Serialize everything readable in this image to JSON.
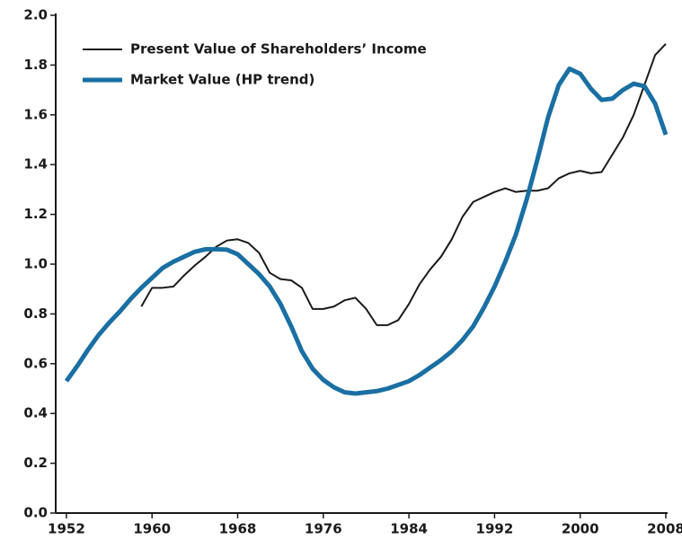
{
  "chart_data": {
    "type": "line",
    "x": [
      1952,
      1953,
      1954,
      1955,
      1956,
      1957,
      1958,
      1959,
      1960,
      1961,
      1962,
      1963,
      1964,
      1965,
      1966,
      1967,
      1968,
      1969,
      1970,
      1971,
      1972,
      1973,
      1974,
      1975,
      1976,
      1977,
      1978,
      1979,
      1980,
      1981,
      1982,
      1983,
      1984,
      1985,
      1986,
      1987,
      1988,
      1989,
      1990,
      1991,
      1992,
      1993,
      1994,
      1995,
      1996,
      1997,
      1998,
      1999,
      2000,
      2001,
      2002,
      2003,
      2004,
      2005,
      2006,
      2007,
      2008
    ],
    "series": [
      {
        "name": "Present Value of Shareholders’ Income",
        "color": "#1a1a1a",
        "values": [
          null,
          null,
          null,
          null,
          null,
          null,
          null,
          0.83,
          0.905,
          0.905,
          0.91,
          0.955,
          0.995,
          1.03,
          1.07,
          1.095,
          1.1,
          1.085,
          1.045,
          0.965,
          0.94,
          0.935,
          0.905,
          0.82,
          0.82,
          0.83,
          0.855,
          0.865,
          0.82,
          0.755,
          0.755,
          0.775,
          0.84,
          0.92,
          0.98,
          1.03,
          1.1,
          1.19,
          1.25,
          1.27,
          1.29,
          1.305,
          1.29,
          1.295,
          1.295,
          1.305,
          1.345,
          1.365,
          1.375,
          1.365,
          1.37,
          1.44,
          1.51,
          1.6,
          1.72,
          1.84,
          1.885
        ]
      },
      {
        "name": "Market Value (HP trend)",
        "color": "#1a6fa3",
        "values": [
          0.53,
          0.59,
          0.655,
          0.715,
          0.765,
          0.81,
          0.86,
          0.905,
          0.945,
          0.985,
          1.01,
          1.03,
          1.05,
          1.06,
          1.06,
          1.058,
          1.04,
          1.0,
          0.96,
          0.91,
          0.84,
          0.75,
          0.65,
          0.58,
          0.535,
          0.505,
          0.485,
          0.48,
          0.485,
          0.49,
          0.5,
          0.515,
          0.53,
          0.555,
          0.585,
          0.615,
          0.65,
          0.695,
          0.75,
          0.825,
          0.91,
          1.01,
          1.12,
          1.26,
          1.42,
          1.59,
          1.72,
          1.785,
          1.765,
          1.705,
          1.66,
          1.665,
          1.7,
          1.725,
          1.715,
          1.645,
          1.52
        ]
      }
    ],
    "xlim": [
      1951,
      2008
    ],
    "xticks": [
      1952,
      1960,
      1968,
      1976,
      1984,
      1992,
      2000,
      2008
    ],
    "ylim": [
      0,
      2
    ],
    "yticks": [
      {
        "value": 0,
        "label": "0.0"
      },
      0.2,
      0.4,
      0.6,
      0.8,
      {
        "value": 1,
        "label": "1.0"
      },
      1.2,
      1.4,
      1.6,
      1.8,
      {
        "value": 2,
        "label": "2.0"
      }
    ],
    "legend": "upper left",
    "grid": false
  }
}
